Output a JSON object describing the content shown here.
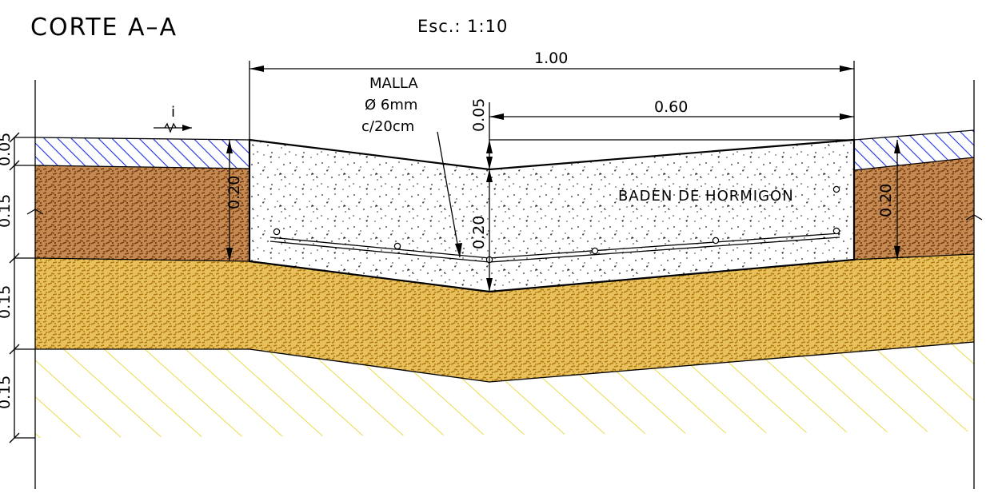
{
  "title": "CORTE A–A",
  "scale": "Esc.: 1:10",
  "slope_symbol": "i",
  "mesh_note": {
    "line1": "MALLA",
    "line2": "Ø 6mm",
    "line3": "c/20cm"
  },
  "concrete_label": "BADEN DE HORMIGÓN",
  "dimensions": {
    "total_width": "1.00",
    "half_width": "0.60",
    "crown_drop": "0.05",
    "slab_thickness_center": "0.20",
    "left_slab_depth": "0.20",
    "right_slab_depth": "0.20",
    "top_layer": "0.05",
    "layer_1": "0.15",
    "layer_2": "0.15",
    "layer_3": "0.15"
  },
  "colors": {
    "asphalt_hatch": "#1e2ee0",
    "brown_soil": "#8a4a1c",
    "sand_base": "#d6a21e",
    "subgrade_hatch": "#e6d21e",
    "concrete_speckle": "#222222"
  }
}
